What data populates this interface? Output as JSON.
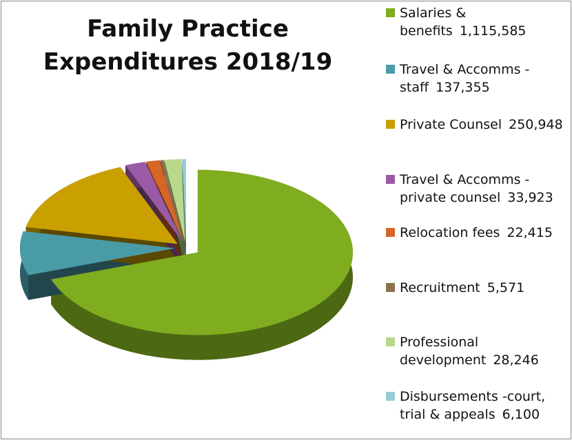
{
  "chart_data": {
    "type": "pie",
    "title": "Family Practice Expenditures 2018/19",
    "categories": [
      "Salaries & benefits",
      "Travel & Accomms - staff",
      "Private Counsel",
      "Travel & Accomms - private counsel",
      "Relocation fees",
      "Recruitment",
      "Professional development",
      "Disbursements -court, trial & appeals"
    ],
    "values": [
      1115585,
      137355,
      250948,
      33923,
      22415,
      5571,
      28246,
      6100
    ],
    "value_labels": [
      "1,115,585",
      "137,355",
      "250,948",
      "33,923",
      "22,415",
      "5,571",
      "28,246",
      "6,100"
    ],
    "colors": [
      "#7fad1f",
      "#4a9ba8",
      "#c9a000",
      "#9b5aa5",
      "#d66528",
      "#8b7350",
      "#b8d98a",
      "#99cdd6"
    ],
    "legend": "right"
  }
}
